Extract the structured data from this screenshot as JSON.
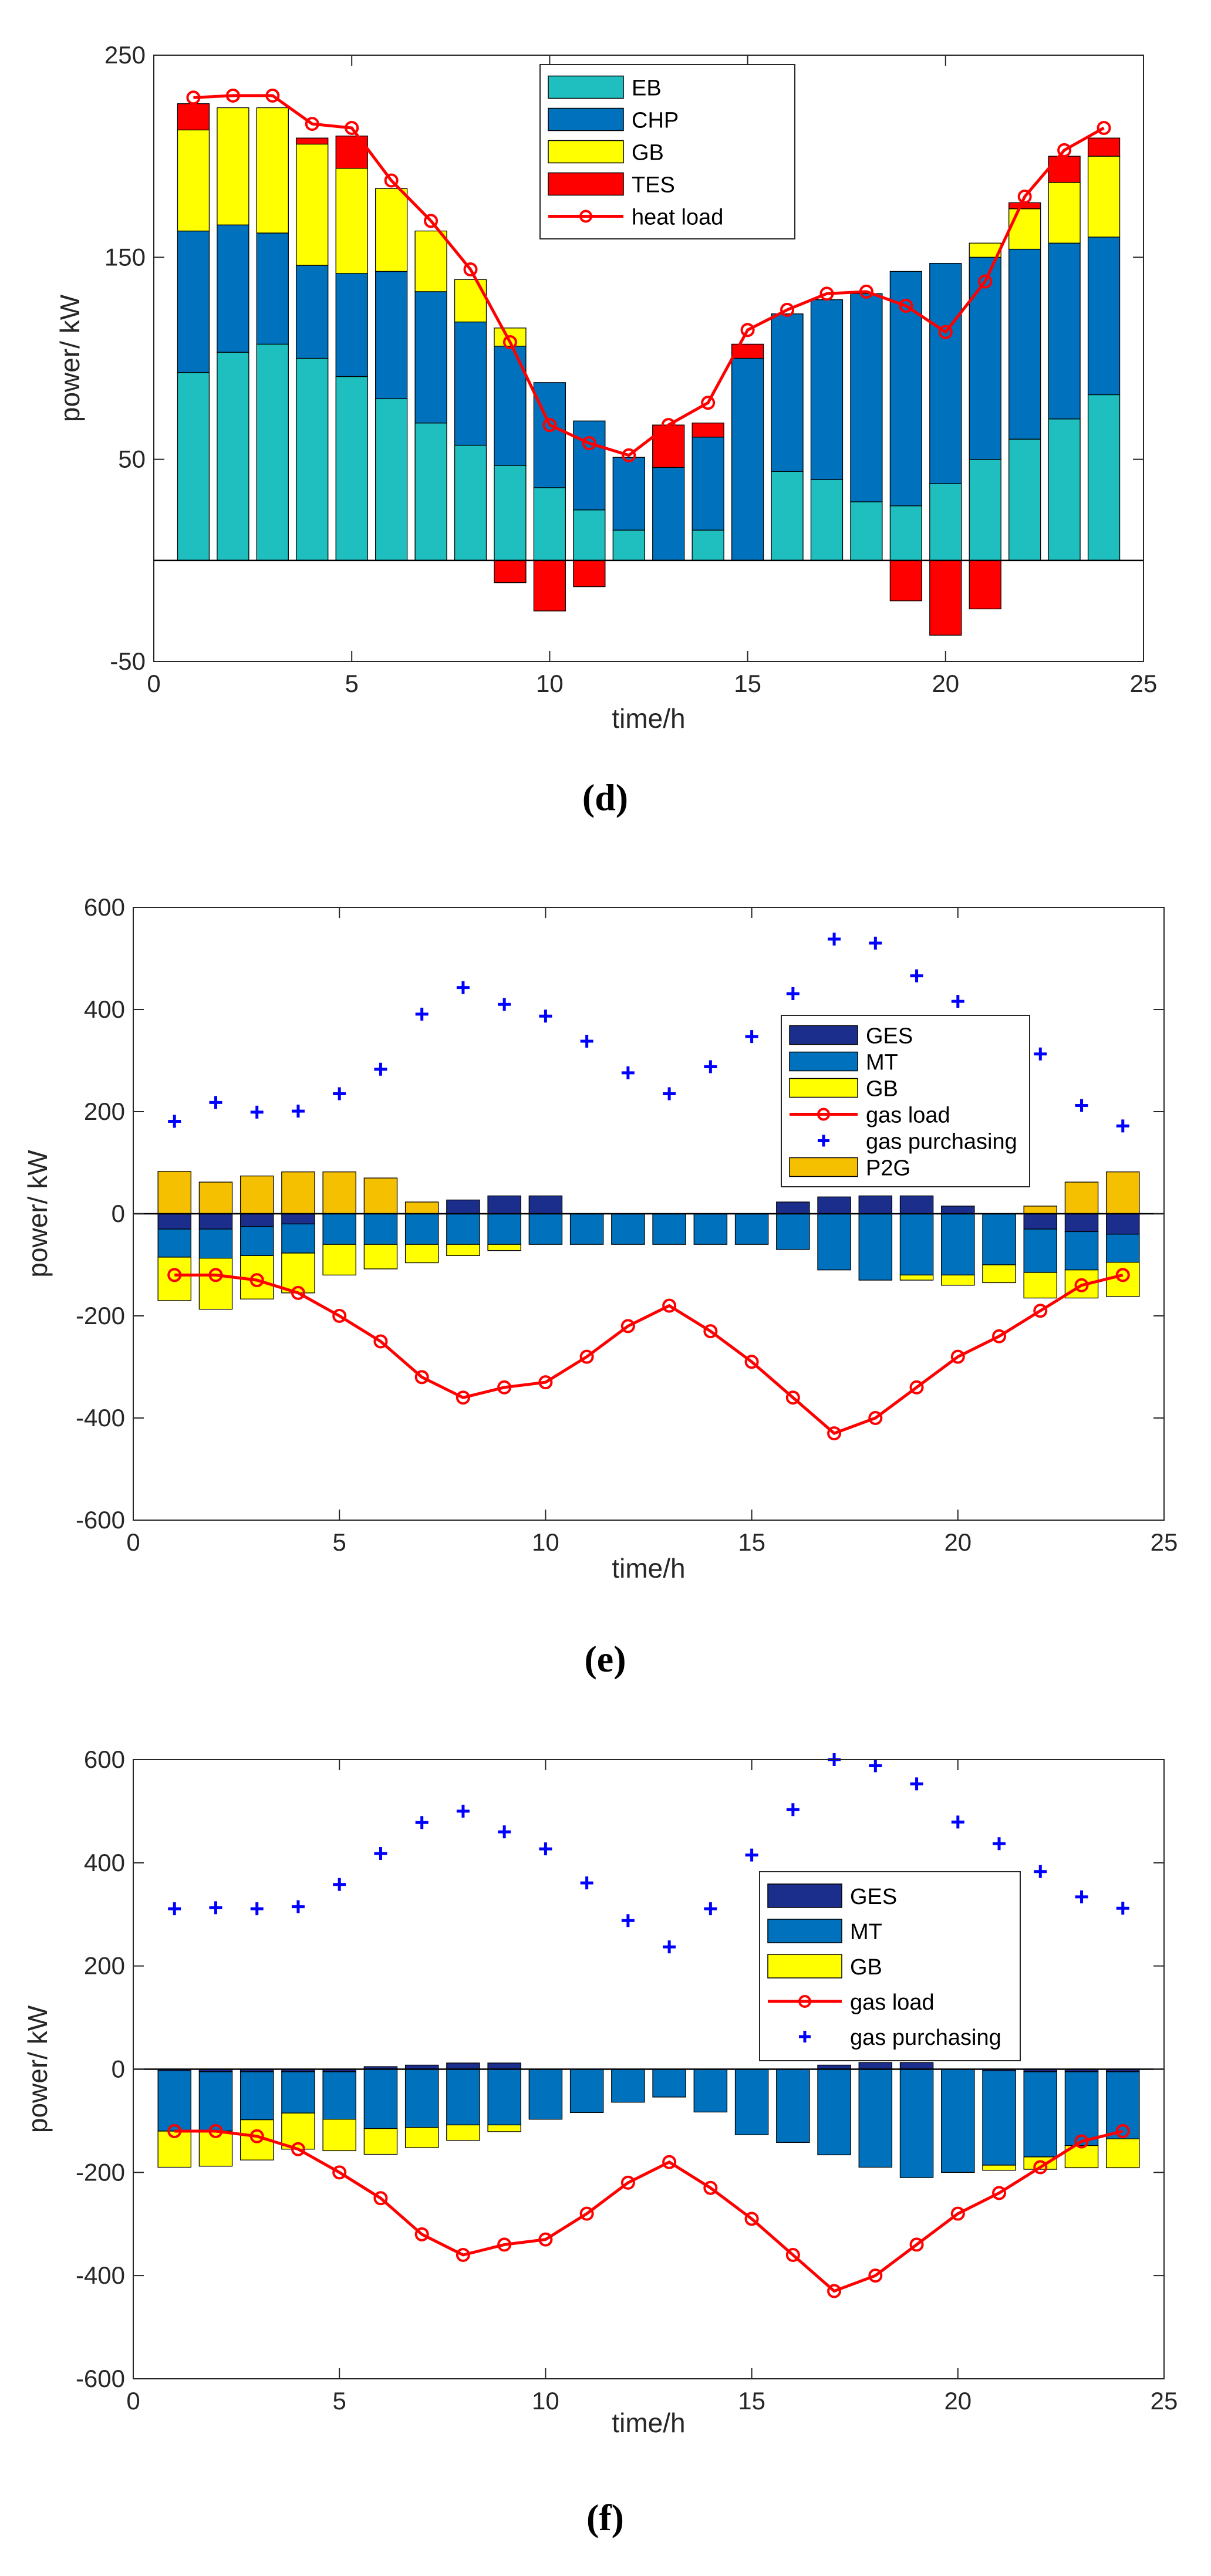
{
  "chart_data": [
    {
      "id": "d",
      "caption": "(d)",
      "type": "bar",
      "stacked": true,
      "xlabel": "time/h",
      "ylabel": "power/ kW",
      "xlim": [
        0,
        25
      ],
      "ylim": [
        -50,
        250
      ],
      "xticks": [
        0,
        5,
        10,
        15,
        20,
        25
      ],
      "yticks": [
        -50,
        50,
        150,
        250
      ],
      "grid": false,
      "legend_position": "top-center",
      "legend": [
        "EB",
        "CHP",
        "GB",
        "TES",
        "heat load"
      ],
      "x": [
        1,
        2,
        3,
        4,
        5,
        6,
        7,
        8,
        9,
        10,
        11,
        12,
        13,
        14,
        15,
        16,
        17,
        18,
        19,
        20,
        21,
        22,
        23,
        24
      ],
      "series": [
        {
          "name": "EB",
          "kind": "bar",
          "color": "#1fbfbf",
          "values": [
            93,
            103,
            107,
            100,
            91,
            80,
            68,
            57,
            47,
            36,
            25,
            15,
            0,
            15,
            0,
            44,
            40,
            29,
            27,
            38,
            50,
            60,
            70,
            82
          ]
        },
        {
          "name": "CHP",
          "kind": "bar",
          "color": "#0072bd",
          "values": [
            70,
            63,
            55,
            46,
            51,
            63,
            65,
            61,
            59,
            52,
            44,
            36,
            46,
            46,
            100,
            78,
            89,
            103,
            116,
            109,
            100,
            94,
            87,
            78
          ]
        },
        {
          "name": "GB",
          "kind": "bar",
          "color": "#ffff00",
          "values": [
            50,
            58,
            62,
            60,
            52,
            41,
            30,
            21,
            9,
            0,
            0,
            0,
            0,
            0,
            0,
            0,
            0,
            0,
            0,
            0,
            7,
            20,
            30,
            40
          ]
        },
        {
          "name": "TES",
          "kind": "bar",
          "color": "#ff0000",
          "values": [
            13,
            0,
            0,
            3,
            16,
            0,
            0,
            0,
            -11,
            -25,
            -13,
            0,
            21,
            7,
            7,
            0,
            0,
            0,
            -20,
            -37,
            -24,
            3,
            13,
            9
          ]
        },
        {
          "name": "heat load",
          "kind": "line",
          "color": "#ff0000",
          "values": [
            229,
            230,
            230,
            216,
            214,
            188,
            168,
            144,
            108,
            67,
            58,
            52,
            67,
            78,
            114,
            124,
            132,
            133,
            126,
            113,
            138,
            180,
            203,
            214
          ]
        }
      ]
    },
    {
      "id": "e",
      "caption": "(e)",
      "type": "bar",
      "stacked": true,
      "xlabel": "time/h",
      "ylabel": "power/ kW",
      "xlim": [
        0,
        25
      ],
      "ylim": [
        -600,
        600
      ],
      "xticks": [
        0,
        5,
        10,
        15,
        20,
        25
      ],
      "yticks": [
        -600,
        -400,
        -200,
        0,
        200,
        400,
        600
      ],
      "grid": false,
      "legend_position": "center",
      "legend": [
        "GES",
        "MT",
        "GB",
        "gas load",
        "gas purchasing",
        "P2G"
      ],
      "x": [
        1,
        2,
        3,
        4,
        5,
        6,
        7,
        8,
        9,
        10,
        11,
        12,
        13,
        14,
        15,
        16,
        17,
        18,
        19,
        20,
        21,
        22,
        23,
        24
      ],
      "series": [
        {
          "name": "GES",
          "kind": "bar",
          "color": "#1c2e8c",
          "values": [
            -30,
            -30,
            -25,
            -20,
            0,
            0,
            0,
            27,
            35,
            35,
            0,
            0,
            0,
            0,
            0,
            23,
            33,
            35,
            35,
            15,
            0,
            -30,
            -35,
            -40
          ]
        },
        {
          "name": "MT",
          "kind": "bar",
          "color": "#0072bd",
          "values": [
            -55,
            -57,
            -57,
            -57,
            -60,
            -60,
            -60,
            -60,
            -60,
            -60,
            -60,
            -60,
            -60,
            -60,
            -60,
            -70,
            -110,
            -130,
            -120,
            -120,
            -100,
            -85,
            -75,
            -55
          ]
        },
        {
          "name": "GB",
          "kind": "bar",
          "color": "#ffff00",
          "values": [
            -85,
            -100,
            -85,
            -78,
            -60,
            -48,
            -36,
            -22,
            -12,
            0,
            0,
            0,
            0,
            0,
            0,
            0,
            0,
            0,
            -10,
            -20,
            -35,
            -50,
            -55,
            -67
          ]
        },
        {
          "name": "P2G",
          "kind": "bar",
          "color": "#f5c000",
          "values": [
            83,
            62,
            74,
            82,
            82,
            70,
            23,
            0,
            0,
            0,
            0,
            0,
            0,
            0,
            0,
            0,
            0,
            0,
            0,
            0,
            0,
            15,
            62,
            82
          ]
        },
        {
          "name": "gas load",
          "kind": "line",
          "color": "#ff0000",
          "values": [
            -120,
            -120,
            -130,
            -155,
            -200,
            -250,
            -320,
            -360,
            -340,
            -330,
            -280,
            -220,
            -180,
            -230,
            -290,
            -360,
            -430,
            -400,
            -340,
            -280,
            -240,
            -190,
            -140,
            -120
          ]
        },
        {
          "name": "gas purchasing",
          "kind": "scatter",
          "color": "#0000ff",
          "values": [
            181,
            218,
            199,
            201,
            235,
            283,
            391,
            443,
            410,
            387,
            338,
            276,
            235,
            288,
            347,
            431,
            538,
            530,
            466,
            416,
            377,
            313,
            212,
            172
          ]
        }
      ]
    },
    {
      "id": "f",
      "caption": "(f)",
      "type": "bar",
      "stacked": true,
      "xlabel": "time/h",
      "ylabel": "power/ kW",
      "xlim": [
        0,
        25
      ],
      "ylim": [
        -600,
        600
      ],
      "xticks": [
        0,
        5,
        10,
        15,
        20,
        25
      ],
      "yticks": [
        -600,
        -400,
        -200,
        0,
        200,
        400,
        600
      ],
      "grid": false,
      "legend_position": "center",
      "legend": [
        "GES",
        "MT",
        "GB",
        "gas load",
        "gas purchasing"
      ],
      "x": [
        1,
        2,
        3,
        4,
        5,
        6,
        7,
        8,
        9,
        10,
        11,
        12,
        13,
        14,
        15,
        16,
        17,
        18,
        19,
        20,
        21,
        22,
        23,
        24
      ],
      "series": [
        {
          "name": "GES",
          "kind": "bar",
          "color": "#1c2e8c",
          "values": [
            -3,
            -5,
            -5,
            -5,
            -5,
            5,
            8,
            12,
            12,
            0,
            0,
            0,
            0,
            0,
            0,
            0,
            8,
            13,
            13,
            0,
            -3,
            -5,
            -5,
            -5
          ]
        },
        {
          "name": "MT",
          "kind": "bar",
          "color": "#0072bd",
          "values": [
            -117,
            -115,
            -93,
            -80,
            -92,
            -115,
            -113,
            -108,
            -108,
            -97,
            -84,
            -64,
            -54,
            -83,
            -127,
            -142,
            -166,
            -190,
            -210,
            -200,
            -183,
            -165,
            -143,
            -130
          ]
        },
        {
          "name": "GB",
          "kind": "bar",
          "color": "#ffff00",
          "values": [
            -70,
            -68,
            -78,
            -70,
            -61,
            -50,
            -39,
            -30,
            -13,
            0,
            0,
            0,
            0,
            0,
            0,
            0,
            0,
            0,
            0,
            0,
            -10,
            -24,
            -43,
            -56
          ]
        },
        {
          "name": "gas load",
          "kind": "line",
          "color": "#ff0000",
          "values": [
            -120,
            -120,
            -130,
            -155,
            -200,
            -250,
            -320,
            -360,
            -340,
            -330,
            -280,
            -220,
            -180,
            -230,
            -290,
            -360,
            -430,
            -400,
            -340,
            -280,
            -240,
            -190,
            -140,
            -120
          ]
        },
        {
          "name": "gas purchasing",
          "kind": "scatter",
          "color": "#0000ff",
          "values": [
            311,
            313,
            311,
            315,
            358,
            418,
            478,
            500,
            460,
            427,
            361,
            288,
            237,
            311,
            415,
            503,
            600,
            588,
            553,
            479,
            437,
            383,
            334,
            312
          ]
        }
      ]
    }
  ]
}
